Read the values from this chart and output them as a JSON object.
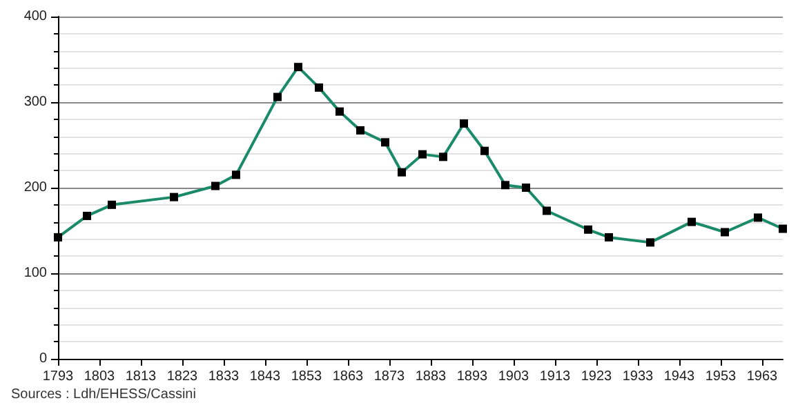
{
  "chart_data": {
    "type": "line",
    "x": [
      1793,
      1800,
      1806,
      1821,
      1831,
      1836,
      1846,
      1851,
      1856,
      1861,
      1866,
      1872,
      1876,
      1881,
      1886,
      1891,
      1896,
      1901,
      1906,
      1911,
      1921,
      1926,
      1936,
      1946,
      1954,
      1962,
      1968
    ],
    "series": [
      {
        "color": "#1a8a68",
        "values": [
          142,
          167,
          180,
          189,
          202,
          215,
          306,
          341,
          317,
          289,
          267,
          253,
          218,
          239,
          236,
          275,
          243,
          203,
          200,
          173,
          151,
          142,
          136,
          160,
          148,
          165,
          152
        ]
      }
    ],
    "xlim": [
      1793,
      1968
    ],
    "xticks": [
      1793,
      1803,
      1813,
      1823,
      1833,
      1843,
      1853,
      1863,
      1873,
      1883,
      1893,
      1903,
      1913,
      1923,
      1933,
      1943,
      1953,
      1963
    ],
    "ylim": [
      0,
      400
    ],
    "yticks": [
      0,
      100,
      200,
      300,
      400
    ],
    "grid": "y",
    "marker": "square",
    "line_style": "solid",
    "annotations": [
      "Sources : Ldh/EHESS/Cassini"
    ]
  }
}
